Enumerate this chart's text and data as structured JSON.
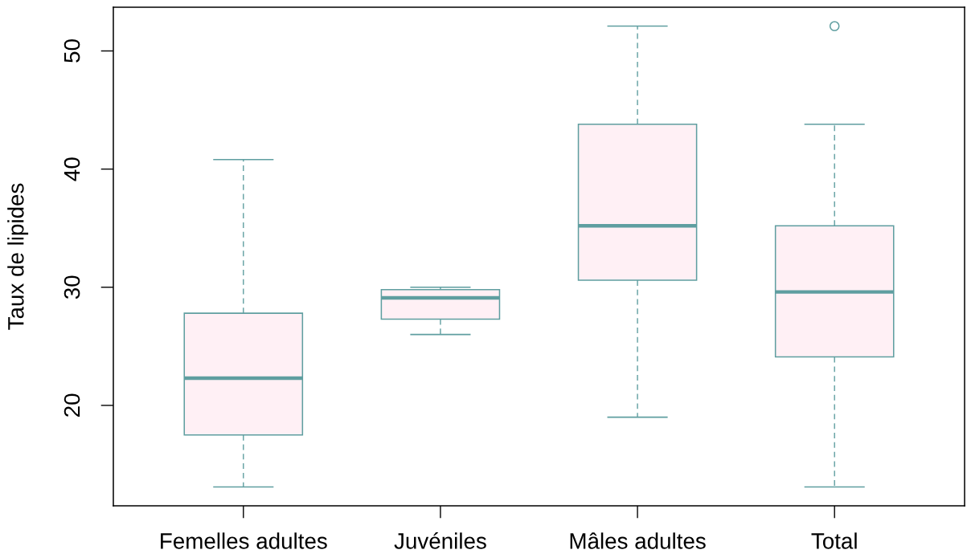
{
  "chart_data": {
    "type": "box",
    "ylabel": "Taux de lipides",
    "categories": [
      "Femelles adultes",
      "Juvéniles",
      "Mâles adultes",
      "Total"
    ],
    "boxes": [
      {
        "low": 13.1,
        "q1": 17.5,
        "median": 22.3,
        "q3": 27.8,
        "high": 40.8
      },
      {
        "low": 26.0,
        "q1": 27.3,
        "median": 29.1,
        "q3": 29.8,
        "high": 30.0
      },
      {
        "low": 19.0,
        "q1": 30.6,
        "median": 35.2,
        "q3": 43.8,
        "high": 52.1
      },
      {
        "low": 13.1,
        "q1": 24.1,
        "median": 29.6,
        "q3": 35.2,
        "high": 43.8,
        "outliers": [
          52.1
        ]
      }
    ],
    "color": "#5f9ea0",
    "colors": [
      "#fff0f5",
      "#fff0f5",
      "#fff0f5",
      "#fff0f5"
    ],
    "line_style": "dashed",
    "marker": "circle",
    "ylim": [
      11.5,
      53.7
    ],
    "yticks": [
      20,
      30,
      40,
      50
    ]
  }
}
